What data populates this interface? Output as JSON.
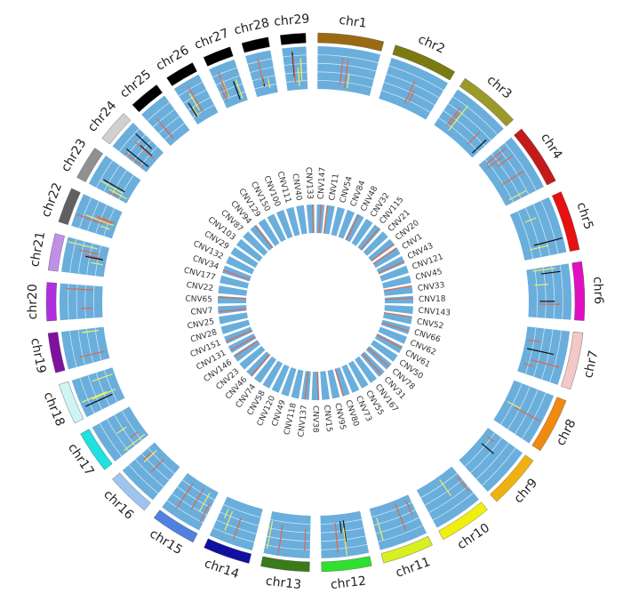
{
  "chromosomes": [
    {
      "label": "chr1",
      "color": "#9a6a12"
    },
    {
      "label": "chr2",
      "color": "#7a7a10"
    },
    {
      "label": "chr3",
      "color": "#9a9a2a"
    },
    {
      "label": "chr4",
      "color": "#c41a1a"
    },
    {
      "label": "chr5",
      "color": "#e81010"
    },
    {
      "label": "chr6",
      "color": "#e010c0"
    },
    {
      "label": "chr7",
      "color": "#f4c8c8"
    },
    {
      "label": "chr8",
      "color": "#f08a10"
    },
    {
      "label": "chr9",
      "color": "#f0b010"
    },
    {
      "label": "chr10",
      "color": "#f0f010"
    },
    {
      "label": "chr11",
      "color": "#d8f020"
    },
    {
      "label": "chr12",
      "color": "#30e030"
    },
    {
      "label": "chr13",
      "color": "#3a7a1a"
    },
    {
      "label": "chr14",
      "color": "#1010a0"
    },
    {
      "label": "chr15",
      "color": "#5080e0"
    },
    {
      "label": "chr16",
      "color": "#a0c4f0"
    },
    {
      "label": "chr17",
      "color": "#20e0e0"
    },
    {
      "label": "chr18",
      "color": "#d0f4f4"
    },
    {
      "label": "chr19",
      "color": "#8010a0"
    },
    {
      "label": "chr20",
      "color": "#b030e0"
    },
    {
      "label": "chr21",
      "color": "#c090e8"
    },
    {
      "label": "chr22",
      "color": "#606060"
    },
    {
      "label": "chr23",
      "color": "#909090"
    },
    {
      "label": "chr24",
      "color": "#d0d0d0"
    },
    {
      "label": "chr25",
      "color": "#000000"
    },
    {
      "label": "chr26",
      "color": "#000000"
    },
    {
      "label": "chr27",
      "color": "#000000"
    },
    {
      "label": "chr28",
      "color": "#000000"
    },
    {
      "label": "chr29",
      "color": "#000000"
    }
  ],
  "cnv_labels": [
    "CNV147",
    "CNV11",
    "CNV54",
    "CNV84",
    "CNV48",
    "CNV32",
    "CNV115",
    "CNV21",
    "CNV20",
    "CNV1",
    "CNV43",
    "CNV121",
    "CNV45",
    "CNV33",
    "CNV18",
    "CNV143",
    "CNV52",
    "CNV66",
    "CNV62",
    "CNV61",
    "CNV50",
    "CNV78",
    "CNV31",
    "CNV167",
    "CNV55",
    "CNV73",
    "CNV80",
    "CNV95",
    "CNV15",
    "CNV38",
    "CNV137",
    "CNV118",
    "CNV49",
    "CNV120",
    "CNV58",
    "CNV74",
    "CNV46",
    "CNV23",
    "CNV146",
    "CNV131",
    "CNV151",
    "CNV28",
    "CNV25",
    "CNV7",
    "CNV65",
    "CNV22",
    "CNV177",
    "CNV34",
    "CNV132",
    "CNV29",
    "CNV103",
    "CNV87",
    "CNV94",
    "CNV129",
    "CNV150",
    "CNV100",
    "CNV111",
    "CNV40",
    "CNV133"
  ]
}
